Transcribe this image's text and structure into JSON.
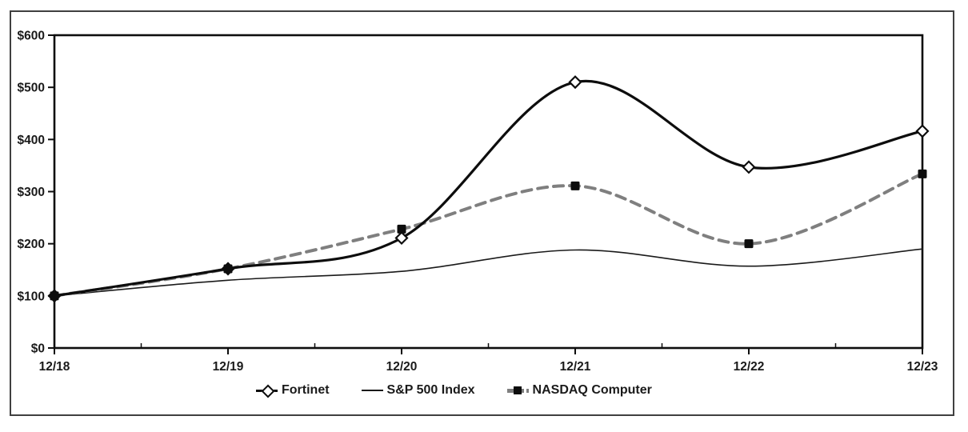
{
  "figure": {
    "background": "#ffffff",
    "border_color": "#404040",
    "text_color": "#1a1a1a"
  },
  "chart_data": {
    "type": "line",
    "categories": [
      "12/18",
      "12/19",
      "12/20",
      "12/21",
      "12/22",
      "12/23"
    ],
    "series": [
      {
        "name": "Fortinet",
        "values": [
          100,
          152,
          211,
          510,
          347,
          416
        ],
        "color": "#0d0d0d",
        "style": "solid-thick",
        "marker": "open-diamond",
        "marker_color": "#0d0d0d"
      },
      {
        "name": "S&P 500 Index",
        "values": [
          100,
          130,
          147,
          188,
          157,
          190
        ],
        "color": "#1a1a1a",
        "style": "solid-thin",
        "marker": "none"
      },
      {
        "name": "NASDAQ Computer",
        "values": [
          100,
          152,
          228,
          311,
          200,
          334
        ],
        "color": "#7f7f7f",
        "style": "dashed",
        "marker": "filled-square",
        "marker_color": "#0d0d0d"
      }
    ],
    "title": "",
    "xlabel": "",
    "ylabel": "",
    "ylim": [
      0,
      600
    ],
    "ytick_step": 100,
    "ytick_labels": [
      "$0",
      "$100",
      "$200",
      "$300",
      "$400",
      "$500",
      "$600"
    ],
    "grid": false,
    "smooth_lines": true,
    "legend_position": "bottom"
  }
}
